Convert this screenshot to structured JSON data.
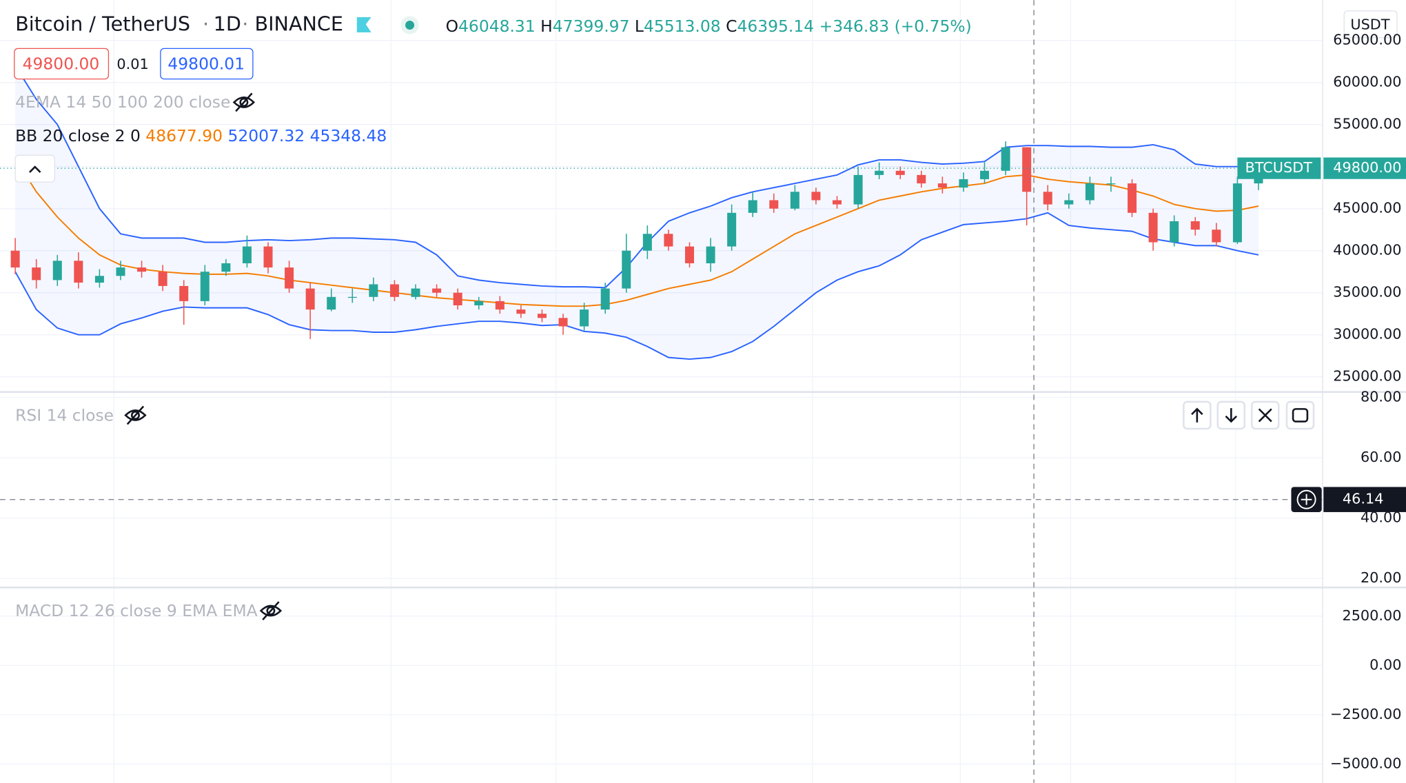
{
  "header": {
    "symbol": "Bitcoin / TetherUS",
    "interval": "1D",
    "exchange": "BINANCE",
    "ohlc": [
      {
        "key": "O",
        "value": "46048.31"
      },
      {
        "key": "H",
        "value": "47399.97"
      },
      {
        "key": "L",
        "value": "45513.08"
      },
      {
        "key": "C",
        "value": "46395.14"
      }
    ],
    "change": "+346.83",
    "change_pct": "(+0.75%)",
    "currency": "USDT"
  },
  "order": {
    "sell": "49800.00",
    "spread": "0.01",
    "buy": "49800.01"
  },
  "indicators": {
    "ema": "4EMA 14 50 100 200 close",
    "bb": {
      "label": "BB 20 close 2 0",
      "values": [
        "48677.90",
        "52007.32",
        "45348.48"
      ]
    }
  },
  "chart_data": [
    {
      "type": "candlestick",
      "up_color": "#26a69a",
      "down_color": "#ef5350",
      "grid": true,
      "open": [
        40000,
        38000,
        36500,
        38800,
        36200,
        37000,
        38000,
        37500,
        35800,
        34000,
        37500,
        38500,
        40500,
        38000,
        35500,
        33000,
        34500,
        34500,
        36000,
        34500,
        35500,
        35000,
        33500,
        34000,
        33000,
        32500,
        32000,
        31000,
        33000,
        35500,
        40000,
        42000,
        40500,
        38500,
        40500,
        44500,
        46000,
        45000,
        47000,
        46000,
        45500,
        49000,
        49500,
        49000,
        48000,
        47500,
        48500,
        49500,
        52300,
        47000,
        45500,
        46000,
        48000,
        48000,
        44500,
        41000,
        43500,
        42500,
        41000,
        48000
      ],
      "high": [
        41500,
        39000,
        39500,
        39800,
        37800,
        38800,
        38800,
        38300,
        36500,
        38300,
        39000,
        41800,
        41000,
        38800,
        36200,
        35500,
        35500,
        36800,
        36500,
        36000,
        36000,
        35500,
        34500,
        34600,
        33500,
        33000,
        32500,
        33800,
        36200,
        42000,
        43000,
        42500,
        41000,
        41500,
        45500,
        47000,
        46800,
        47800,
        47500,
        46500,
        50000,
        50500,
        50000,
        49500,
        48800,
        49300,
        50500,
        53000,
        52300,
        47800,
        46800,
        48800,
        48800,
        48500,
        45000,
        44200,
        44000,
        43300,
        48800,
        50400
      ],
      "low": [
        37200,
        35500,
        35800,
        35500,
        35600,
        36500,
        36800,
        35200,
        31200,
        33500,
        37000,
        38000,
        37300,
        35000,
        29500,
        32800,
        33800,
        34000,
        34000,
        34200,
        34500,
        33000,
        33000,
        32500,
        32000,
        31500,
        30000,
        30500,
        32500,
        35000,
        39000,
        40000,
        38000,
        37500,
        40000,
        44000,
        44500,
        44800,
        45500,
        45000,
        45000,
        48500,
        48500,
        47500,
        46800,
        47000,
        48000,
        49000,
        43000,
        44800,
        45000,
        45500,
        47000,
        44000,
        40000,
        40500,
        41800,
        40500,
        40800,
        47200
      ],
      "close": [
        38000,
        36500,
        38800,
        36200,
        37000,
        38000,
        37500,
        35800,
        34000,
        37500,
        38500,
        40500,
        38000,
        35500,
        33000,
        34500,
        34500,
        36000,
        34500,
        35500,
        35000,
        33500,
        34000,
        33000,
        32500,
        32000,
        31000,
        33000,
        35500,
        40000,
        42000,
        40500,
        38500,
        40500,
        44500,
        46000,
        45000,
        47000,
        46000,
        45500,
        49000,
        49500,
        49000,
        48000,
        47500,
        48500,
        49500,
        52300,
        47000,
        45500,
        46000,
        48000,
        48000,
        44500,
        41000,
        43500,
        42500,
        41000,
        48000,
        49800
      ],
      "bands": [
        {
          "color": "#2962ff",
          "values": [
            62000,
            58000,
            55000,
            50000,
            45000,
            42000,
            41500,
            41500,
            41500,
            41000,
            41000,
            41200,
            41300,
            41200,
            41300,
            41500,
            41500,
            41400,
            41300,
            41000,
            39500,
            37000,
            36500,
            36200,
            36000,
            35800,
            35700,
            35700,
            35600,
            38000,
            41000,
            43500,
            44500,
            45300,
            46300,
            47000,
            47500,
            48000,
            48500,
            49000,
            50200,
            50800,
            50800,
            50500,
            50300,
            50400,
            50600,
            52300,
            52500,
            52500,
            52400,
            52400,
            52300,
            52300,
            52600,
            52000,
            50300,
            50000,
            50000,
            50200
          ]
        },
        {
          "color": "#f57c00",
          "values": [
            51000,
            47000,
            44000,
            41500,
            39500,
            38300,
            37800,
            37500,
            37300,
            37200,
            37200,
            37300,
            37000,
            36500,
            36200,
            35900,
            35600,
            35300,
            35000,
            34700,
            34400,
            34200,
            34000,
            33800,
            33600,
            33500,
            33400,
            33400,
            33600,
            34100,
            34800,
            35500,
            36000,
            36500,
            37500,
            39000,
            40500,
            42000,
            43000,
            44000,
            45000,
            46000,
            46500,
            47000,
            47400,
            47700,
            48000,
            48800,
            49000,
            48500,
            48200,
            48000,
            47800,
            47200,
            46500,
            45500,
            45000,
            44700,
            44800,
            45300
          ]
        },
        {
          "color": "#2962ff",
          "values": [
            37500,
            33000,
            30800,
            30000,
            30000,
            31300,
            32000,
            32800,
            33300,
            33200,
            33200,
            33200,
            32400,
            31200,
            30600,
            30500,
            30500,
            30300,
            30300,
            30600,
            31000,
            31300,
            31600,
            31600,
            31400,
            31100,
            31200,
            30400,
            30200,
            29700,
            28600,
            27300,
            27100,
            27300,
            28000,
            29200,
            31000,
            33000,
            35000,
            36500,
            37500,
            38200,
            39500,
            41300,
            42200,
            43100,
            43300,
            43500,
            43800,
            44500,
            43000,
            42700,
            42500,
            42300,
            41400,
            41000,
            40600,
            40600,
            40000,
            39500
          ]
        }
      ],
      "band_fill": "#2962ff",
      "ylim": [
        23200,
        69800
      ],
      "yticks": [
        {
          "value": 65000,
          "label": "65000.00"
        },
        {
          "value": 60000,
          "label": "60000.00"
        },
        {
          "value": 55000,
          "label": "55000.00"
        },
        {
          "value": 50000,
          "label": "50000.00"
        },
        {
          "value": 45000,
          "label": "45000.00"
        },
        {
          "value": 40000,
          "label": "40000.00"
        },
        {
          "value": 35000,
          "label": "35000.00"
        },
        {
          "value": 30000,
          "label": "30000.00"
        },
        {
          "value": 25000,
          "label": "25000.00"
        }
      ],
      "last_price": {
        "value": 49800,
        "label": "49800.00",
        "tag": "BTCUSDT",
        "color": "#26a69a"
      }
    },
    {
      "type": "line",
      "title": "RSI 14 close",
      "ylim": [
        17,
        81.8
      ],
      "yticks": [
        {
          "value": 80,
          "label": "80.00"
        },
        {
          "value": 60,
          "label": "60.00"
        },
        {
          "value": 40,
          "label": "40.00"
        },
        {
          "value": 20,
          "label": "20.00"
        }
      ],
      "crosshair": {
        "value": 46.14
      }
    },
    {
      "type": "line",
      "title": "MACD 12 26 close 9 EMA EMA",
      "ylim": [
        -5955,
        3955
      ],
      "yticks": [
        {
          "value": 2500,
          "label": "2500.00"
        },
        {
          "value": 0,
          "label": "0.00"
        },
        {
          "value": -2500,
          "label": "−2500.00"
        },
        {
          "value": -5000,
          "label": "−5000.00"
        }
      ]
    }
  ]
}
